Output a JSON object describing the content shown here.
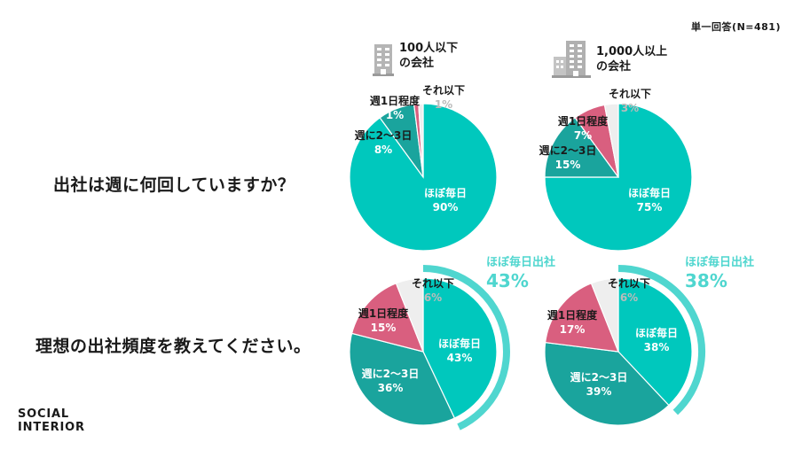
{
  "header": {
    "note": "単一回答(N=481)"
  },
  "questions": {
    "current": "出社は週に何回していますか？",
    "ideal": "理想の出社頻度を教えてください。"
  },
  "groups": [
    {
      "name_line1": "100人以下",
      "name_line2": "の会社",
      "icon": "small-building-icon"
    },
    {
      "name_line1": "1,000人以上",
      "name_line2": "の会社",
      "icon": "large-building-icon"
    }
  ],
  "logo": {
    "line1": "SOCIAL",
    "line2": "INTERIOR"
  },
  "colors": {
    "daily": "#00c8bd",
    "two_three": "#1aa49d",
    "once": "#d95f7f",
    "less": "#eeeeee",
    "highlight_arc": "#4fd6cf",
    "highlight_text": "#4fd6cf",
    "grey_pct": "#bbbbbb"
  },
  "chart_data": [
    {
      "type": "pie",
      "question": "出社は週に何回していますか？",
      "group": "100人以下の会社",
      "slices": [
        {
          "label": "ほぼ毎日",
          "value": 90,
          "pct": "90%"
        },
        {
          "label": "週に2〜3日",
          "value": 8,
          "pct": "8%"
        },
        {
          "label": "週1日程度",
          "value": 1,
          "pct": "1%"
        },
        {
          "label": "それ以下",
          "value": 1,
          "pct": "1%"
        }
      ]
    },
    {
      "type": "pie",
      "question": "出社は週に何回していますか？",
      "group": "1,000人以上の会社",
      "slices": [
        {
          "label": "ほぼ毎日",
          "value": 75,
          "pct": "75%"
        },
        {
          "label": "週に2〜3日",
          "value": 15,
          "pct": "15%"
        },
        {
          "label": "週1日程度",
          "value": 7,
          "pct": "7%"
        },
        {
          "label": "それ以下",
          "value": 3,
          "pct": "3%"
        }
      ]
    },
    {
      "type": "pie",
      "question": "理想の出社頻度を教えてください。",
      "group": "100人以下の会社",
      "highlight": {
        "label": "ほぼ毎日出社",
        "pct": "43%"
      },
      "slices": [
        {
          "label": "ほぼ毎日",
          "value": 43,
          "pct": "43%"
        },
        {
          "label": "週に2〜3日",
          "value": 36,
          "pct": "36%"
        },
        {
          "label": "週1日程度",
          "value": 15,
          "pct": "15%"
        },
        {
          "label": "それ以下",
          "value": 6,
          "pct": "6%"
        }
      ]
    },
    {
      "type": "pie",
      "question": "理想の出社頻度を教えてください。",
      "group": "1,000人以上の会社",
      "highlight": {
        "label": "ほぼ毎日出社",
        "pct": "38%"
      },
      "slices": [
        {
          "label": "ほぼ毎日",
          "value": 38,
          "pct": "38%"
        },
        {
          "label": "週に2〜3日",
          "value": 39,
          "pct": "39%"
        },
        {
          "label": "週1日程度",
          "value": 17,
          "pct": "17%"
        },
        {
          "label": "それ以下",
          "value": 6,
          "pct": "6%"
        }
      ]
    }
  ]
}
